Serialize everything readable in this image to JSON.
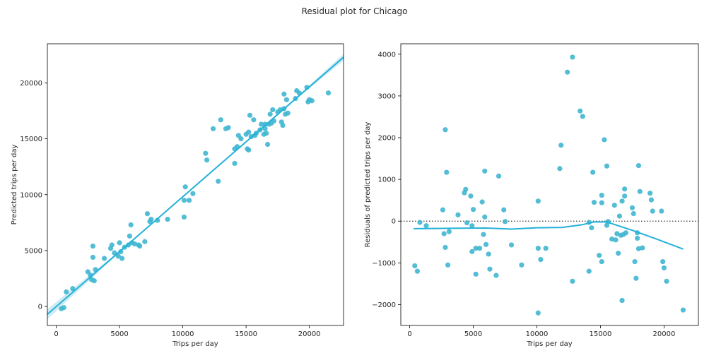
{
  "suptitle": "Residual plot for Chicago",
  "colors": {
    "points": "#3fb6d0",
    "line": "#23b1d8",
    "ci_band": "#c9e9f3",
    "zero_line": "#333333",
    "axes": "#000000"
  },
  "chart_data": [
    {
      "type": "scatter",
      "subtype": "regression",
      "title": "",
      "xlabel": "Trips per day",
      "ylabel": "Predicted trips per day",
      "xlim": [
        -700,
        22700
      ],
      "ylim": [
        -1700,
        23500
      ],
      "xticks": [
        0,
        5000,
        10000,
        15000,
        20000
      ],
      "yticks": [
        0,
        5000,
        10000,
        15000,
        20000
      ],
      "regression_line": {
        "x": [
          -700,
          22700
        ],
        "y": [
          -700,
          22300
        ]
      },
      "points": [
        [
          400,
          -200
        ],
        [
          600,
          -100
        ],
        [
          800,
          1300
        ],
        [
          1300,
          1600
        ],
        [
          2500,
          3100
        ],
        [
          2700,
          2800
        ],
        [
          2800,
          2400
        ],
        [
          2900,
          5400
        ],
        [
          2900,
          4400
        ],
        [
          3000,
          2300
        ],
        [
          3100,
          3300
        ],
        [
          3800,
          4300
        ],
        [
          4300,
          5200
        ],
        [
          4400,
          5500
        ],
        [
          4600,
          4800
        ],
        [
          4900,
          4500
        ],
        [
          5000,
          5700
        ],
        [
          5100,
          4900
        ],
        [
          5200,
          4300
        ],
        [
          5400,
          5300
        ],
        [
          5700,
          5500
        ],
        [
          5800,
          6300
        ],
        [
          5900,
          7300
        ],
        [
          6000,
          5700
        ],
        [
          6200,
          5600
        ],
        [
          6500,
          5500
        ],
        [
          6600,
          5400
        ],
        [
          7000,
          5800
        ],
        [
          7200,
          8300
        ],
        [
          7400,
          7600
        ],
        [
          7500,
          7800
        ],
        [
          8000,
          7700
        ],
        [
          8800,
          7800
        ],
        [
          10100,
          8000
        ],
        [
          10100,
          9500
        ],
        [
          10200,
          10700
        ],
        [
          10500,
          9500
        ],
        [
          10800,
          10100
        ],
        [
          11800,
          13700
        ],
        [
          11900,
          13100
        ],
        [
          12400,
          15900
        ],
        [
          12800,
          11200
        ],
        [
          13000,
          16700
        ],
        [
          13400,
          15900
        ],
        [
          13600,
          16000
        ],
        [
          14100,
          14100
        ],
        [
          14100,
          12800
        ],
        [
          14300,
          14300
        ],
        [
          14400,
          15300
        ],
        [
          14600,
          15000
        ],
        [
          15000,
          15400
        ],
        [
          15100,
          14100
        ],
        [
          15200,
          15600
        ],
        [
          15200,
          14000
        ],
        [
          15300,
          17100
        ],
        [
          15400,
          15200
        ],
        [
          15600,
          16700
        ],
        [
          15700,
          15300
        ],
        [
          15800,
          15500
        ],
        [
          16100,
          15800
        ],
        [
          16200,
          16300
        ],
        [
          16400,
          15400
        ],
        [
          16500,
          16300
        ],
        [
          16500,
          15900
        ],
        [
          16600,
          15500
        ],
        [
          16700,
          14500
        ],
        [
          16800,
          16300
        ],
        [
          16900,
          17200
        ],
        [
          17000,
          16400
        ],
        [
          17100,
          17600
        ],
        [
          17200,
          16600
        ],
        [
          17500,
          17400
        ],
        [
          17700,
          17600
        ],
        [
          17800,
          16500
        ],
        [
          17900,
          16200
        ],
        [
          18000,
          17700
        ],
        [
          18100,
          17200
        ],
        [
          18200,
          18500
        ],
        [
          18300,
          17300
        ],
        [
          18000,
          19000
        ],
        [
          18900,
          18600
        ],
        [
          19000,
          19300
        ],
        [
          19200,
          19100
        ],
        [
          19800,
          19600
        ],
        [
          19900,
          18300
        ],
        [
          20000,
          18500
        ],
        [
          20200,
          18400
        ],
        [
          21500,
          19100
        ]
      ]
    },
    {
      "type": "scatter",
      "subtype": "residual",
      "title": "",
      "xlabel": "Trips per day",
      "ylabel": "Residuals of predicted trips per day",
      "xlim": [
        -700,
        22700
      ],
      "ylim": [
        -2500,
        4250
      ],
      "xticks": [
        0,
        5000,
        10000,
        15000,
        20000
      ],
      "yticks": [
        -2000,
        -1000,
        0,
        1000,
        2000,
        3000,
        4000
      ],
      "zero_line": 0,
      "lowess": {
        "x": [
          300,
          2000,
          4000,
          6000,
          8000,
          10000,
          12000,
          13500,
          14500,
          15500,
          16500,
          17500,
          18500,
          19500,
          21500
        ],
        "y": [
          -180,
          -175,
          -170,
          -165,
          -190,
          -160,
          -150,
          -90,
          -20,
          -20,
          -120,
          -220,
          -330,
          -440,
          -670
        ]
      },
      "points": [
        [
          400,
          -1070
        ],
        [
          600,
          -1200
        ],
        [
          800,
          -30
        ],
        [
          1300,
          -110
        ],
        [
          2600,
          270
        ],
        [
          2700,
          -300
        ],
        [
          2800,
          2190
        ],
        [
          2800,
          -630
        ],
        [
          2900,
          1170
        ],
        [
          3000,
          -1050
        ],
        [
          3100,
          -250
        ],
        [
          3800,
          150
        ],
        [
          4300,
          680
        ],
        [
          4400,
          760
        ],
        [
          4500,
          -40
        ],
        [
          4800,
          600
        ],
        [
          4900,
          -110
        ],
        [
          4900,
          -730
        ],
        [
          5000,
          280
        ],
        [
          5200,
          -1270
        ],
        [
          5200,
          -650
        ],
        [
          5500,
          -650
        ],
        [
          5700,
          460
        ],
        [
          5800,
          -320
        ],
        [
          5900,
          1200
        ],
        [
          5900,
          100
        ],
        [
          6000,
          -560
        ],
        [
          6200,
          -790
        ],
        [
          6300,
          -1150
        ],
        [
          6800,
          -1300
        ],
        [
          7000,
          1080
        ],
        [
          7400,
          270
        ],
        [
          7500,
          -10
        ],
        [
          8000,
          -570
        ],
        [
          8800,
          -1050
        ],
        [
          10100,
          480
        ],
        [
          10100,
          -650
        ],
        [
          10100,
          -2200
        ],
        [
          10300,
          -920
        ],
        [
          10700,
          -650
        ],
        [
          11800,
          1260
        ],
        [
          11900,
          1820
        ],
        [
          12400,
          3570
        ],
        [
          12800,
          3930
        ],
        [
          12800,
          -1440
        ],
        [
          13400,
          2640
        ],
        [
          13600,
          2510
        ],
        [
          14100,
          -30
        ],
        [
          14100,
          -1200
        ],
        [
          14300,
          -160
        ],
        [
          14400,
          1170
        ],
        [
          14500,
          450
        ],
        [
          14900,
          -820
        ],
        [
          15100,
          440
        ],
        [
          15100,
          620
        ],
        [
          15100,
          -970
        ],
        [
          15300,
          1950
        ],
        [
          15500,
          -100
        ],
        [
          15500,
          1320
        ],
        [
          15600,
          -10
        ],
        [
          15900,
          -430
        ],
        [
          16100,
          380
        ],
        [
          16200,
          -450
        ],
        [
          16300,
          -300
        ],
        [
          16400,
          -770
        ],
        [
          16500,
          120
        ],
        [
          16600,
          -340
        ],
        [
          16700,
          -1900
        ],
        [
          16700,
          480
        ],
        [
          16800,
          -320
        ],
        [
          16900,
          600
        ],
        [
          16900,
          770
        ],
        [
          17000,
          -280
        ],
        [
          17500,
          320
        ],
        [
          17600,
          180
        ],
        [
          17700,
          -970
        ],
        [
          17800,
          -1370
        ],
        [
          17900,
          -280
        ],
        [
          17900,
          -410
        ],
        [
          18000,
          1330
        ],
        [
          18000,
          -660
        ],
        [
          18100,
          710
        ],
        [
          18300,
          -640
        ],
        [
          18900,
          670
        ],
        [
          19000,
          510
        ],
        [
          19100,
          240
        ],
        [
          19800,
          240
        ],
        [
          19900,
          -970
        ],
        [
          20000,
          -1120
        ],
        [
          20200,
          -1440
        ],
        [
          21500,
          -2130
        ]
      ]
    }
  ]
}
